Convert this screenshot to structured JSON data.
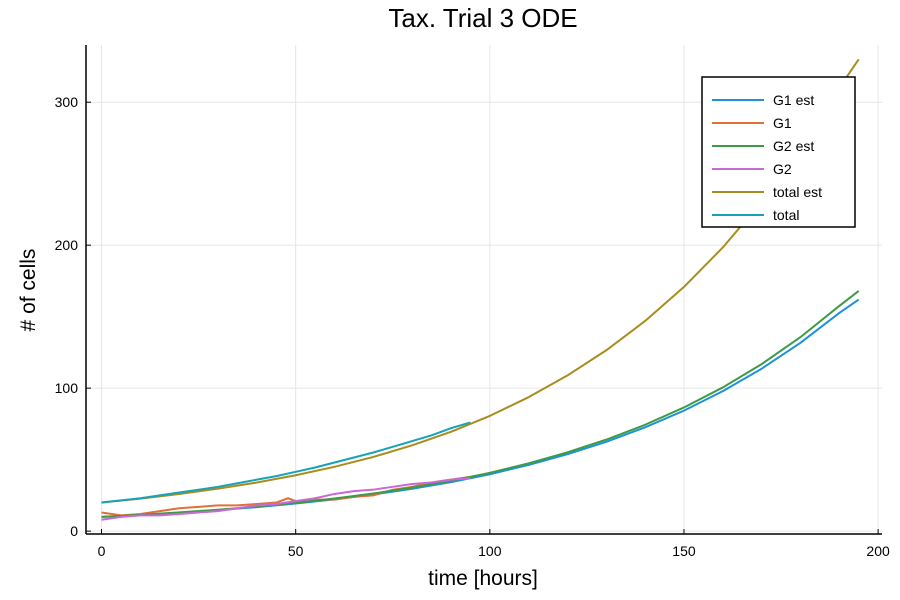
{
  "chart_data": {
    "type": "line",
    "title": "Tax. Trial 3 ODE",
    "xlabel": "time [hours]",
    "ylabel": "# of cells",
    "xlim": [
      -4,
      201
    ],
    "ylim": [
      -2,
      340
    ],
    "xticks": [
      0,
      50,
      100,
      150,
      200
    ],
    "yticks": [
      0,
      100,
      200,
      300
    ],
    "grid": true,
    "legend_position": "top-right",
    "series": [
      {
        "name": "G1 est",
        "color": "#1e90e0",
        "x": [
          0,
          10,
          20,
          30,
          40,
          50,
          60,
          70,
          80,
          90,
          100,
          110,
          120,
          130,
          140,
          150,
          160,
          170,
          180,
          190,
          195
        ],
        "y": [
          10,
          11.3,
          12.9,
          14.7,
          16.8,
          19.3,
          22.2,
          25.6,
          29.6,
          34.3,
          39.8,
          46.3,
          53.8,
          62.5,
          72.6,
          84.3,
          97.9,
          113.6,
          131.7,
          152.6,
          162
        ]
      },
      {
        "name": "G1",
        "color": "#e0703a",
        "x": [
          0,
          5,
          10,
          15,
          20,
          25,
          30,
          35,
          40,
          45,
          48,
          50,
          55,
          60,
          65,
          70,
          75,
          80,
          85,
          90,
          95
        ],
        "y": [
          13,
          11,
          12,
          14,
          16,
          17,
          18,
          18,
          19,
          20,
          23,
          21,
          22,
          22,
          24,
          25,
          29,
          31,
          34,
          36,
          38
        ]
      },
      {
        "name": "G2 est",
        "color": "#3e9b45",
        "x": [
          0,
          10,
          20,
          30,
          40,
          50,
          60,
          70,
          80,
          90,
          100,
          110,
          120,
          130,
          140,
          150,
          160,
          170,
          180,
          190,
          195
        ],
        "y": [
          10,
          11.4,
          13.1,
          15.0,
          17.2,
          19.8,
          22.8,
          26.3,
          30.4,
          35.2,
          40.8,
          47.4,
          55.1,
          64.0,
          74.4,
          86.5,
          100.5,
          116.8,
          135.7,
          157.5,
          168
        ]
      },
      {
        "name": "G2",
        "color": "#c86ad6",
        "x": [
          0,
          5,
          10,
          15,
          20,
          25,
          30,
          35,
          40,
          45,
          50,
          55,
          60,
          65,
          70,
          75,
          80,
          85,
          90,
          95
        ],
        "y": [
          8,
          10,
          11,
          11,
          12,
          13,
          14,
          16,
          18,
          19,
          21,
          23,
          26,
          28,
          29,
          31,
          33,
          34,
          36,
          37
        ]
      },
      {
        "name": "total est",
        "color": "#a88d1e",
        "x": [
          0,
          10,
          20,
          30,
          40,
          50,
          60,
          70,
          80,
          90,
          100,
          110,
          120,
          130,
          140,
          150,
          160,
          170,
          180,
          190,
          195
        ],
        "y": [
          20,
          22.7,
          26.0,
          29.7,
          34.0,
          39.1,
          45.0,
          51.9,
          60.0,
          69.5,
          80.6,
          93.7,
          108.9,
          126.5,
          147.0,
          170.8,
          198.4,
          230.4,
          267.4,
          310.1,
          330
        ]
      },
      {
        "name": "total",
        "color": "#17a2b8",
        "x": [
          0,
          5,
          10,
          15,
          20,
          25,
          30,
          35,
          40,
          45,
          50,
          55,
          60,
          65,
          70,
          75,
          80,
          85,
          90,
          95
        ],
        "y": [
          20,
          21.5,
          23,
          25,
          27,
          29,
          31,
          33.5,
          36,
          38.5,
          41.5,
          44.5,
          48,
          51.5,
          55,
          59,
          63,
          67,
          72,
          76
        ]
      }
    ]
  }
}
